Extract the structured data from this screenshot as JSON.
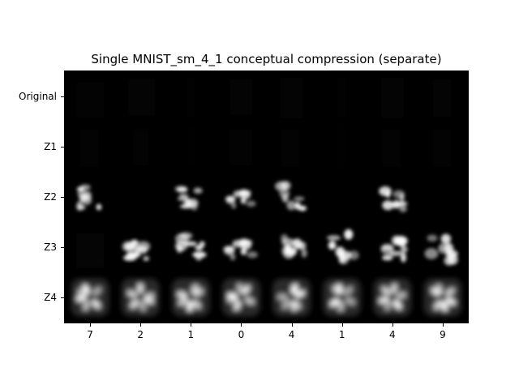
{
  "title": "Single MNIST_sm_4_1 conceptual compression (separate)",
  "rows": [
    "Original",
    "Z1",
    "Z2",
    "Z3",
    "Z4"
  ],
  "columns": [
    "7",
    "2",
    "1",
    "0",
    "4",
    "1",
    "4",
    "9"
  ],
  "colors": {
    "background": "#000000",
    "ink": "#ffffff"
  }
}
